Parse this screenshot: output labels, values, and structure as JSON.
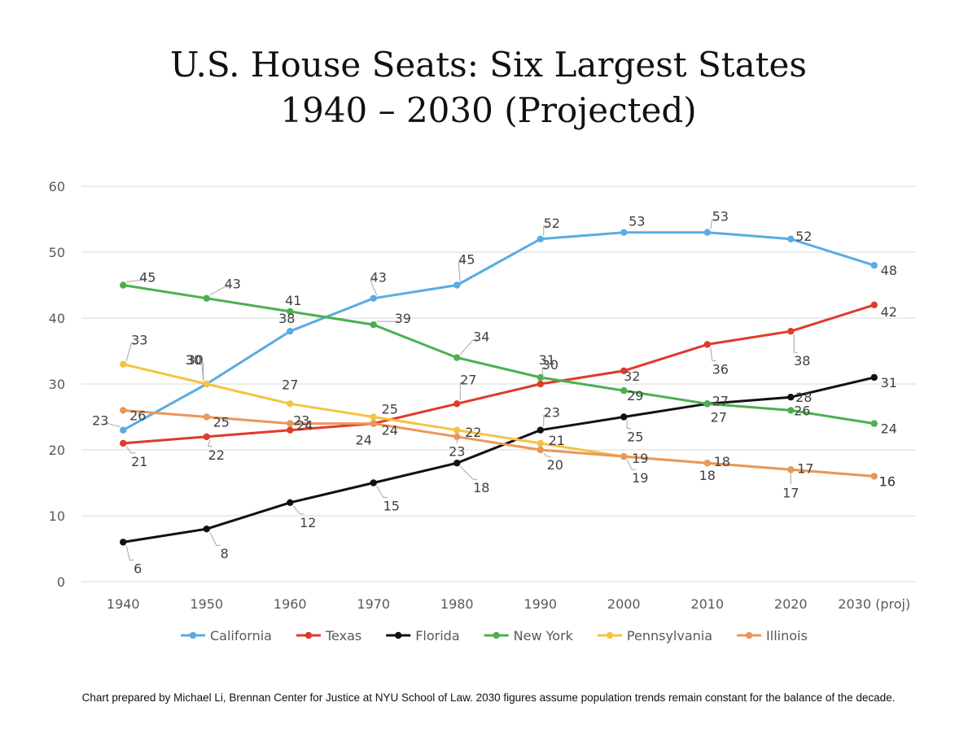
{
  "chart_data": {
    "type": "line",
    "title_line1": "U.S. House Seats: Six Largest States",
    "title_line2": "1940 – 2030 (Projected)",
    "xlabel": "",
    "ylabel": "",
    "categories": [
      "1940",
      "1950",
      "1960",
      "1970",
      "1980",
      "1990",
      "2000",
      "2010",
      "2020",
      "2030 (proj)"
    ],
    "ylim": [
      0,
      60
    ],
    "yticks": [
      0,
      10,
      20,
      30,
      40,
      50,
      60
    ],
    "grid": true,
    "legend_position": "bottom",
    "series": [
      {
        "name": "California",
        "color": "#5AACE2",
        "values": [
          23,
          30,
          38,
          43,
          45,
          52,
          53,
          53,
          52,
          48
        ]
      },
      {
        "name": "Texas",
        "color": "#E03A2B",
        "values": [
          21,
          22,
          23,
          24,
          27,
          30,
          32,
          36,
          38,
          42
        ]
      },
      {
        "name": "Florida",
        "color": "#111111",
        "values": [
          6,
          8,
          12,
          15,
          18,
          23,
          25,
          27,
          28,
          31
        ]
      },
      {
        "name": "New York",
        "color": "#4CAF50",
        "values": [
          45,
          43,
          41,
          39,
          34,
          31,
          29,
          27,
          26,
          24
        ]
      },
      {
        "name": "Pennsylvania",
        "color": "#F4C342",
        "values": [
          33,
          30,
          27,
          25,
          23,
          21,
          19,
          18,
          17,
          16
        ]
      },
      {
        "name": "Illinois",
        "color": "#E9975A",
        "values": [
          26,
          25,
          24,
          24,
          22,
          20,
          19,
          18,
          17,
          16
        ]
      }
    ],
    "footnote": "Chart prepared by Michael Li, Brennan Center for Justice at NYU School of Law. 2030 figures assume population trends remain constant for the balance of the decade."
  }
}
